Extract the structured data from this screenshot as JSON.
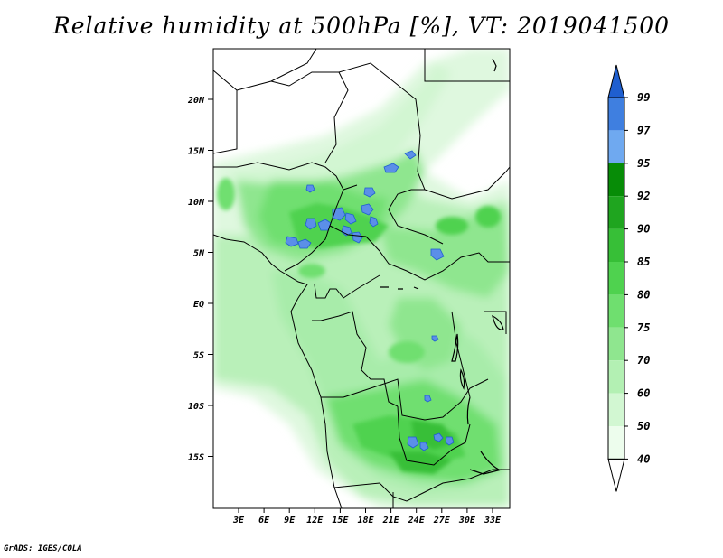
{
  "title": "Relative humidity at 500hPa [%], VT: 2019041500",
  "credit": "GrADS: IGES/COLA",
  "map": {
    "lat_labels": [
      "20N",
      "15N",
      "10N",
      "5N",
      "EQ",
      "5S",
      "10S",
      "15S"
    ],
    "lon_labels": [
      "3E",
      "6E",
      "9E",
      "12E",
      "15E",
      "18E",
      "21E",
      "24E",
      "27E",
      "30E",
      "33E"
    ]
  },
  "colorbar": {
    "levels": [
      "99",
      "97",
      "95",
      "92",
      "90",
      "85",
      "80",
      "75",
      "70",
      "60",
      "50",
      "40"
    ],
    "colors": [
      "#1f5fd0",
      "#3f7fe0",
      "#6fa9f0",
      "#078c07",
      "#1fa51f",
      "#37bf37",
      "#4fd24f",
      "#6fdf6f",
      "#8fe68f",
      "#b3f0b3",
      "#d2f7d2",
      "#edfded",
      "#ffffff"
    ]
  }
}
